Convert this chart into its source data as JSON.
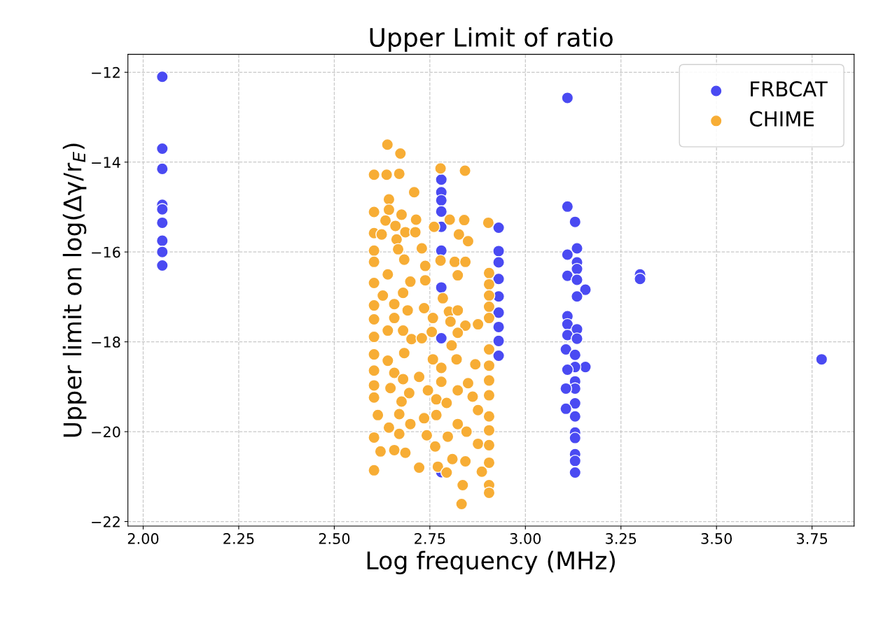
{
  "chart_data": {
    "type": "scatter",
    "title": "Upper Limit of ratio",
    "xlabel": "Log frequency (MHz)",
    "ylabel": "Upper limit on log(Δγ/r$_{E}$)",
    "xlim": [
      1.96,
      3.86
    ],
    "ylim": [
      -22.1,
      -11.6
    ],
    "xticks": [
      {
        "value": 2.0,
        "label": "2.00"
      },
      {
        "value": 2.25,
        "label": "2.25"
      },
      {
        "value": 2.5,
        "label": "2.50"
      },
      {
        "value": 2.75,
        "label": "2.75"
      },
      {
        "value": 3.0,
        "label": "3.00"
      },
      {
        "value": 3.25,
        "label": "3.25"
      },
      {
        "value": 3.5,
        "label": "3.50"
      },
      {
        "value": 3.75,
        "label": "3.75"
      }
    ],
    "yticks": [
      {
        "value": -12,
        "label": "−12"
      },
      {
        "value": -14,
        "label": "−14"
      },
      {
        "value": -16,
        "label": "−16"
      },
      {
        "value": -18,
        "label": "−18"
      },
      {
        "value": -20,
        "label": "−20"
      },
      {
        "value": -22,
        "label": "−22"
      }
    ],
    "grid": true,
    "legend": "top right",
    "marker": "circle",
    "series": [
      {
        "name": "FRBCAT",
        "color": "#4a4af2",
        "x": [
          2.05,
          2.05,
          2.05,
          2.05,
          2.05,
          2.05,
          2.05,
          2.05,
          2.05,
          2.78,
          2.78,
          2.78,
          2.78,
          2.78,
          2.78,
          2.78,
          2.78,
          2.78,
          2.93,
          2.93,
          2.93,
          2.93,
          2.93,
          2.93,
          2.93,
          2.93,
          2.93,
          3.11,
          3.11,
          3.13,
          3.135,
          3.11,
          3.135,
          3.135,
          3.11,
          3.135,
          3.157,
          3.135,
          3.11,
          3.11,
          3.135,
          3.11,
          3.135,
          3.106,
          3.13,
          3.157,
          3.13,
          3.11,
          3.13,
          3.13,
          3.106,
          3.13,
          3.106,
          3.13,
          3.13,
          3.13,
          3.13,
          3.13,
          3.13,
          3.3,
          3.3,
          3.775
        ],
        "values": [
          -12.1,
          -13.7,
          -14.15,
          -14.95,
          -15.05,
          -15.35,
          -15.75,
          -16.0,
          -16.3,
          -14.39,
          -14.67,
          -14.85,
          -15.1,
          -15.44,
          -15.97,
          -16.79,
          -17.92,
          -20.9,
          -15.46,
          -15.98,
          -16.23,
          -16.6,
          -16.99,
          -17.35,
          -17.67,
          -17.98,
          -18.31,
          -12.57,
          -14.99,
          -15.33,
          -15.92,
          -16.06,
          -16.23,
          -16.38,
          -16.53,
          -16.62,
          -16.84,
          -16.99,
          -17.43,
          -17.61,
          -17.72,
          -17.85,
          -17.93,
          -18.17,
          -18.29,
          -18.56,
          -18.56,
          -18.62,
          -18.88,
          -19.04,
          -19.04,
          -19.37,
          -19.49,
          -19.66,
          -20.02,
          -20.14,
          -20.5,
          -20.65,
          -20.91,
          -16.5,
          -16.6,
          -18.39
        ]
      },
      {
        "name": "CHIME",
        "color": "#f7ad35",
        "x": [
          2.639,
          2.673,
          2.604,
          2.637,
          2.67,
          2.709,
          2.778,
          2.842,
          2.643,
          2.604,
          2.643,
          2.676,
          2.714,
          2.634,
          2.66,
          2.604,
          2.624,
          2.686,
          2.712,
          2.761,
          2.802,
          2.84,
          2.903,
          2.826,
          2.85,
          2.663,
          2.604,
          2.667,
          2.729,
          2.683,
          2.738,
          2.778,
          2.815,
          2.843,
          2.604,
          2.64,
          2.823,
          2.905,
          2.604,
          2.699,
          2.738,
          2.905,
          2.68,
          2.627,
          2.784,
          2.905,
          2.604,
          2.657,
          2.692,
          2.735,
          2.8,
          2.823,
          2.905,
          2.604,
          2.657,
          2.758,
          2.804,
          2.843,
          2.876,
          2.905,
          2.604,
          2.64,
          2.68,
          2.702,
          2.729,
          2.755,
          2.823,
          2.807,
          2.869,
          2.905,
          2.905,
          2.604,
          2.64,
          2.683,
          2.722,
          2.758,
          2.78,
          2.82,
          2.604,
          2.657,
          2.68,
          2.78,
          2.85,
          2.905,
          2.604,
          2.647,
          2.696,
          2.745,
          2.823,
          2.862,
          2.604,
          2.676,
          2.767,
          2.794,
          2.876,
          2.905,
          2.614,
          2.67,
          2.735,
          2.767,
          2.905,
          2.643,
          2.699,
          2.823,
          2.604,
          2.67,
          2.742,
          2.797,
          2.846,
          2.905,
          2.621,
          2.657,
          2.686,
          2.764,
          2.809,
          2.843,
          2.876,
          2.905,
          2.604,
          2.722,
          2.771,
          2.794,
          2.886,
          2.905,
          2.836,
          2.905,
          2.905,
          2.833
        ],
        "values": [
          -13.61,
          -13.81,
          -14.28,
          -14.28,
          -14.26,
          -14.67,
          -14.14,
          -14.19,
          -14.83,
          -15.11,
          -15.06,
          -15.17,
          -15.28,
          -15.3,
          -15.42,
          -15.58,
          -15.61,
          -15.56,
          -15.56,
          -15.44,
          -15.28,
          -15.29,
          -15.35,
          -15.61,
          -15.76,
          -15.72,
          -15.97,
          -15.94,
          -15.92,
          -16.17,
          -16.31,
          -16.19,
          -16.22,
          -16.22,
          -16.22,
          -16.5,
          -16.52,
          -16.47,
          -16.69,
          -16.66,
          -16.63,
          -16.72,
          -16.91,
          -16.97,
          -17.03,
          -16.97,
          -17.19,
          -17.16,
          -17.3,
          -17.25,
          -17.33,
          -17.3,
          -17.22,
          -17.5,
          -17.47,
          -17.47,
          -17.55,
          -17.64,
          -17.61,
          -17.47,
          -17.89,
          -17.75,
          -17.75,
          -17.94,
          -17.92,
          -17.78,
          -17.8,
          -18.08,
          -18.5,
          -18.17,
          -18.53,
          -18.28,
          -18.42,
          -18.25,
          -18.78,
          -18.39,
          -18.58,
          -18.39,
          -18.64,
          -18.69,
          -18.83,
          -18.89,
          -18.92,
          -18.86,
          -18.97,
          -19.03,
          -19.14,
          -19.08,
          -19.08,
          -19.22,
          -19.24,
          -19.33,
          -19.28,
          -19.36,
          -19.52,
          -19.19,
          -19.63,
          -19.61,
          -19.7,
          -19.63,
          -19.66,
          -19.91,
          -19.83,
          -19.83,
          -20.13,
          -20.05,
          -20.08,
          -20.11,
          -20.0,
          -19.97,
          -20.44,
          -20.41,
          -20.47,
          -20.33,
          -20.61,
          -20.66,
          -20.27,
          -20.3,
          -20.86,
          -20.8,
          -20.78,
          -20.91,
          -20.89,
          -20.69,
          -21.19,
          -21.19,
          -21.36,
          -21.61
        ]
      }
    ]
  }
}
